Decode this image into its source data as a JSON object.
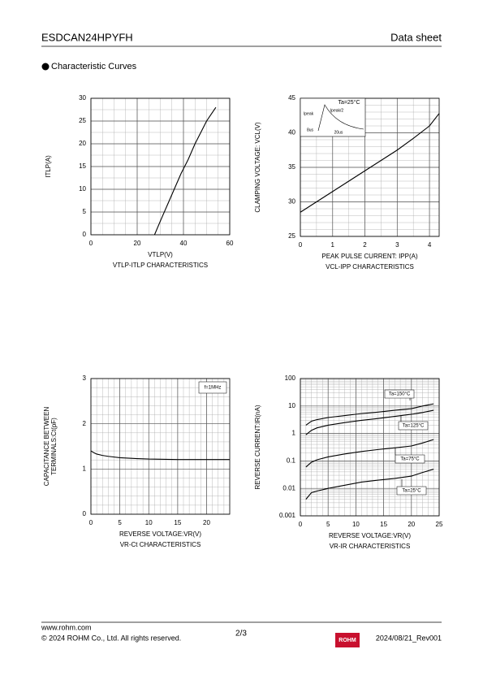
{
  "header": {
    "title": "ESDCAN24HPYFH",
    "doc_type": "Data sheet"
  },
  "section_title": "Characteristic Curves",
  "chart_data": [
    {
      "type": "line",
      "xlabel": "VTLP(V)",
      "ylabel": "ITLP(A)",
      "caption": "VTLP-ITLP CHARACTERISTICS",
      "x": [
        27.5,
        30,
        33,
        36,
        39,
        42,
        45,
        48,
        50,
        52,
        54
      ],
      "values": [
        0,
        3,
        6.5,
        10,
        13.5,
        16.5,
        20,
        23,
        25,
        26.5,
        28
      ],
      "color": "#000000",
      "xlim": [
        0,
        60
      ],
      "xticks": [
        0,
        20,
        40,
        60
      ],
      "ylim": [
        0,
        30
      ],
      "yticks": [
        0,
        5,
        10,
        15,
        20,
        25,
        30
      ],
      "grid": true
    },
    {
      "type": "line",
      "xlabel": "PEAK PULSE CURRENT: IPP(A)",
      "ylabel": "CLAMPING VOLTAGE: VCL(V)",
      "caption": "VCL-IPP CHARACTERISTICS",
      "annotations": [
        "Ta=25°C",
        "Ipeak",
        "Ipeak/2",
        "8us",
        "20us"
      ],
      "x": [
        0,
        0.5,
        1,
        1.5,
        2,
        2.5,
        3,
        3.5,
        4,
        4.3
      ],
      "values": [
        28.5,
        30,
        31.5,
        33,
        34.5,
        36,
        37.5,
        39.2,
        41,
        42.8
      ],
      "color": "#000000",
      "xlim": [
        0,
        4.3
      ],
      "xticks": [
        0,
        1,
        2,
        3,
        4
      ],
      "ylim": [
        25,
        45
      ],
      "yticks": [
        25,
        30,
        35,
        40,
        45
      ],
      "grid": true
    },
    {
      "type": "line",
      "xlabel": "REVERSE VOLTAGE:VR(V)",
      "ylabel": [
        "CAPACITANCE BETWEEN",
        "TERMINALS:Ct(pF)"
      ],
      "caption": "VR-Ct CHARACTERISTICS",
      "annotations": [
        "f=1MHz"
      ],
      "x": [
        0,
        0.5,
        1,
        2,
        3,
        5,
        8,
        10,
        15,
        20,
        24
      ],
      "values": [
        1.4,
        1.36,
        1.33,
        1.3,
        1.28,
        1.25,
        1.23,
        1.22,
        1.21,
        1.21,
        1.21
      ],
      "color": "#000000",
      "xlim": [
        0,
        24
      ],
      "xticks": [
        0,
        5,
        10,
        15,
        20
      ],
      "ylim": [
        0,
        3
      ],
      "yticks": [
        0,
        1,
        2,
        3
      ],
      "grid": true
    },
    {
      "type": "line",
      "xlabel": "REVERSE VOLTAGE:VR(V)",
      "ylabel": "REVERSE CURRENT:IR(nA)",
      "caption": "VR-IR CHARACTERISTICS",
      "x": [
        1,
        2,
        3,
        5,
        8,
        11,
        14,
        17,
        20,
        22,
        24
      ],
      "series": [
        {
          "name": "Ta=150°C",
          "color": "#000000",
          "values": [
            2,
            2.8,
            3.2,
            3.8,
            4.5,
            5.3,
            6,
            7,
            8,
            10,
            12
          ]
        },
        {
          "name": "Ta=125°C",
          "color": "#000000",
          "values": [
            0.9,
            1.3,
            1.6,
            2,
            2.5,
            3,
            3.5,
            4.2,
            5,
            5.8,
            7
          ]
        },
        {
          "name": "Ta=75°C",
          "color": "#000000",
          "values": [
            0.06,
            0.09,
            0.11,
            0.14,
            0.18,
            0.22,
            0.26,
            0.3,
            0.35,
            0.45,
            0.6
          ]
        },
        {
          "name": "Ta=25°C",
          "color": "#000000",
          "values": [
            0.004,
            0.007,
            0.008,
            0.01,
            0.013,
            0.017,
            0.02,
            0.023,
            0.028,
            0.038,
            0.05
          ]
        }
      ],
      "xlim": [
        0,
        25
      ],
      "xticks": [
        0,
        5,
        10,
        15,
        20,
        25
      ],
      "ylim": [
        0.001,
        100
      ],
      "yticks": [
        0.001,
        0.01,
        0.1,
        1,
        10,
        100
      ],
      "ylog": true,
      "grid": true
    }
  ],
  "footer": {
    "url": "www.rohm.com",
    "copyright": "© 2024 ROHM Co., Ltd. All rights reserved.",
    "page": "2/3",
    "logo": "ROHM",
    "revision": "2024/08/21_Rev001"
  }
}
